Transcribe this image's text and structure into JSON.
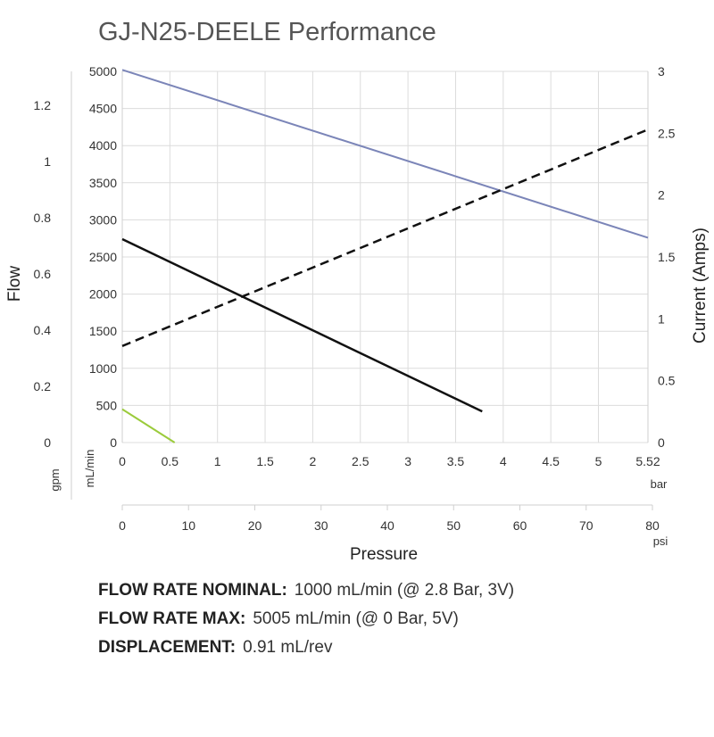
{
  "chart_data": {
    "type": "line",
    "title": "GJ-N25-DEELE Performance",
    "xlabel": "Pressure",
    "ylabel_left": "Flow",
    "ylabel_right": "Current (Amps)",
    "x_bar": {
      "unit": "bar",
      "min": 0,
      "max": 5.52,
      "ticks": [
        0,
        0.5,
        1,
        1.5,
        2,
        2.5,
        3,
        3.5,
        4,
        4.5,
        5,
        5.52
      ],
      "tick_labels": [
        "0",
        "0.5",
        "1",
        "1.5",
        "2",
        "2.5",
        "3",
        "3.5",
        "4",
        "4.5",
        "5",
        "5.52"
      ]
    },
    "x_psi": {
      "unit": "psi",
      "min": 0,
      "max": 80,
      "ticks": [
        0,
        10,
        20,
        30,
        40,
        50,
        60,
        70,
        80
      ],
      "tick_labels": [
        "0",
        "10",
        "20",
        "30",
        "40",
        "50",
        "60",
        "70",
        "80"
      ]
    },
    "y_mlmin": {
      "unit": "mL/min",
      "min": 0,
      "max": 5000,
      "ticks": [
        0,
        500,
        1000,
        1500,
        2000,
        2500,
        3000,
        3500,
        4000,
        4500,
        5000
      ],
      "tick_labels": [
        "0",
        "500",
        "1000",
        "1500",
        "2000",
        "2500",
        "3000",
        "3500",
        "4000",
        "4500",
        "5000"
      ]
    },
    "y_gpm": {
      "unit": "gpm",
      "min": 0,
      "max": 1.32,
      "ticks": [
        0,
        0.2,
        0.4,
        0.6,
        0.8,
        1,
        1.2
      ],
      "tick_labels": [
        "0",
        "0.2",
        "0.4",
        "0.6",
        "0.8",
        "1",
        "1.2"
      ]
    },
    "y_amps": {
      "min": 0,
      "max": 3,
      "ticks": [
        0,
        0.5,
        1,
        1.5,
        2,
        2.5,
        3
      ],
      "tick_labels": [
        "0",
        "0.5",
        "1",
        "1.5",
        "2",
        "2.5",
        "3"
      ]
    },
    "grid": true,
    "series": [
      {
        "axis": "left",
        "color": "#7b85b8",
        "dash": "none",
        "width": 2,
        "points": [
          [
            0,
            5020
          ],
          [
            5.52,
            2760
          ]
        ]
      },
      {
        "axis": "left",
        "color": "#111111",
        "dash": "none",
        "width": 2.5,
        "points": [
          [
            0,
            2740
          ],
          [
            3.78,
            420
          ]
        ]
      },
      {
        "axis": "left",
        "color": "#9bcb3b",
        "dash": "none",
        "width": 2,
        "points": [
          [
            0,
            450
          ],
          [
            0.55,
            0
          ]
        ]
      },
      {
        "axis": "right",
        "color": "#111111",
        "dash": "10,6",
        "width": 2.5,
        "points": [
          [
            0,
            0.78
          ],
          [
            5.52,
            2.53
          ]
        ]
      }
    ]
  },
  "specs": [
    {
      "label": "FLOW RATE NOMINAL:",
      "value": "1000 mL/min (@ 2.8 Bar, 3V)"
    },
    {
      "label": "FLOW RATE MAX:",
      "value": "5005 mL/min (@ 0 Bar, 5V)"
    },
    {
      "label": "DISPLACEMENT:",
      "value": "0.91 mL/rev"
    }
  ]
}
